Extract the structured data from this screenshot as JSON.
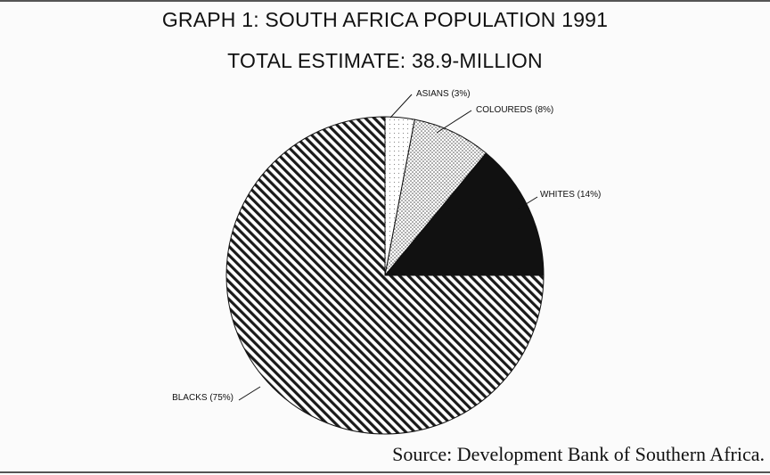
{
  "chart_data": {
    "type": "pie",
    "title": "GRAPH 1: SOUTH AFRICA POPULATION 1991",
    "subtitle": "TOTAL ESTIMATE: 38.9-MILLION",
    "slices": [
      {
        "label": "ASIANS (3%)",
        "value": 3,
        "pattern": "dots-light"
      },
      {
        "label": "COLOUREDS (8%)",
        "value": 8,
        "pattern": "dots"
      },
      {
        "label": "WHITES (14%)",
        "value": 14,
        "pattern": "solid"
      },
      {
        "label": "BLACKS (75%)",
        "value": 75,
        "pattern": "diagonal-hatch"
      }
    ],
    "source": "Source: Development Bank of Southern Africa."
  },
  "colors": {
    "ink": "#111111",
    "background": "#fbfbfb"
  }
}
